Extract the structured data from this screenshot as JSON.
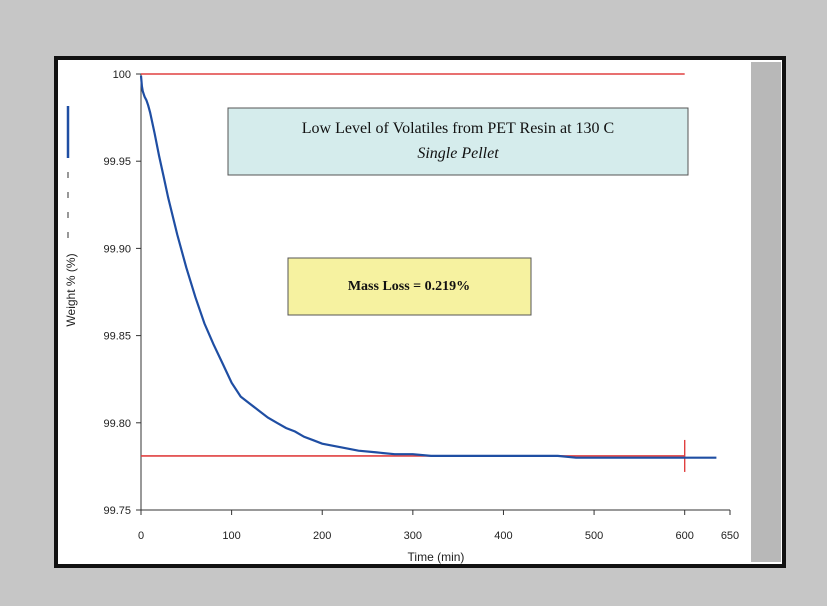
{
  "colors": {
    "background": "#c6c6c6",
    "frame": "#111111",
    "data_line": "#1f4ea3",
    "reference_line": "#e04040",
    "title_box_fill": "#d5ecec",
    "note_box_fill": "#f6f2a0"
  },
  "chart_data": {
    "type": "line",
    "title": "Low Level of Volatiles from PET Resin at 130 C",
    "subtitle": "Single Pellet",
    "annotation": "Mass Loss = 0.219%",
    "xlabel": "Time (min)",
    "ylabel": "Weight % (%)",
    "xlim": [
      0,
      650
    ],
    "ylim": [
      99.75,
      100
    ],
    "x_ticks": [
      "0",
      "100",
      "200",
      "300",
      "400",
      "500",
      "600",
      "650"
    ],
    "y_ticks": [
      "100",
      "99.95",
      "99.90",
      "99.85",
      "99.80",
      "99.75"
    ],
    "grid": false,
    "series": [
      {
        "role": "weight",
        "x": [
          0,
          1,
          2,
          4,
          6,
          8,
          10,
          15,
          20,
          25,
          30,
          40,
          50,
          60,
          70,
          80,
          90,
          100,
          110,
          120,
          130,
          140,
          150,
          160,
          170,
          180,
          190,
          200,
          220,
          240,
          260,
          280,
          300,
          320,
          340,
          360,
          380,
          400,
          420,
          440,
          460,
          480,
          500,
          520,
          540,
          560,
          580,
          600,
          620,
          635
        ],
        "y": [
          99.999,
          99.993,
          99.99,
          99.987,
          99.985,
          99.982,
          99.978,
          99.966,
          99.953,
          99.941,
          99.929,
          99.908,
          99.889,
          99.872,
          99.857,
          99.845,
          99.834,
          99.823,
          99.815,
          99.811,
          99.807,
          99.803,
          99.8,
          99.797,
          99.795,
          99.792,
          99.79,
          99.788,
          99.786,
          99.784,
          99.783,
          99.782,
          99.782,
          99.781,
          99.781,
          99.781,
          99.781,
          99.781,
          99.781,
          99.781,
          99.781,
          99.78,
          99.78,
          99.78,
          99.78,
          99.78,
          99.78,
          99.78,
          99.78,
          99.78
        ]
      },
      {
        "role": "initial-weight-reference",
        "x": [
          0,
          600
        ],
        "y": [
          100,
          100
        ]
      },
      {
        "role": "final-weight-reference",
        "x": [
          0,
          600
        ],
        "y": [
          99.781,
          99.781
        ]
      }
    ],
    "markers": [
      {
        "role": "end-marker",
        "x": 600,
        "y": 99.781
      }
    ]
  }
}
